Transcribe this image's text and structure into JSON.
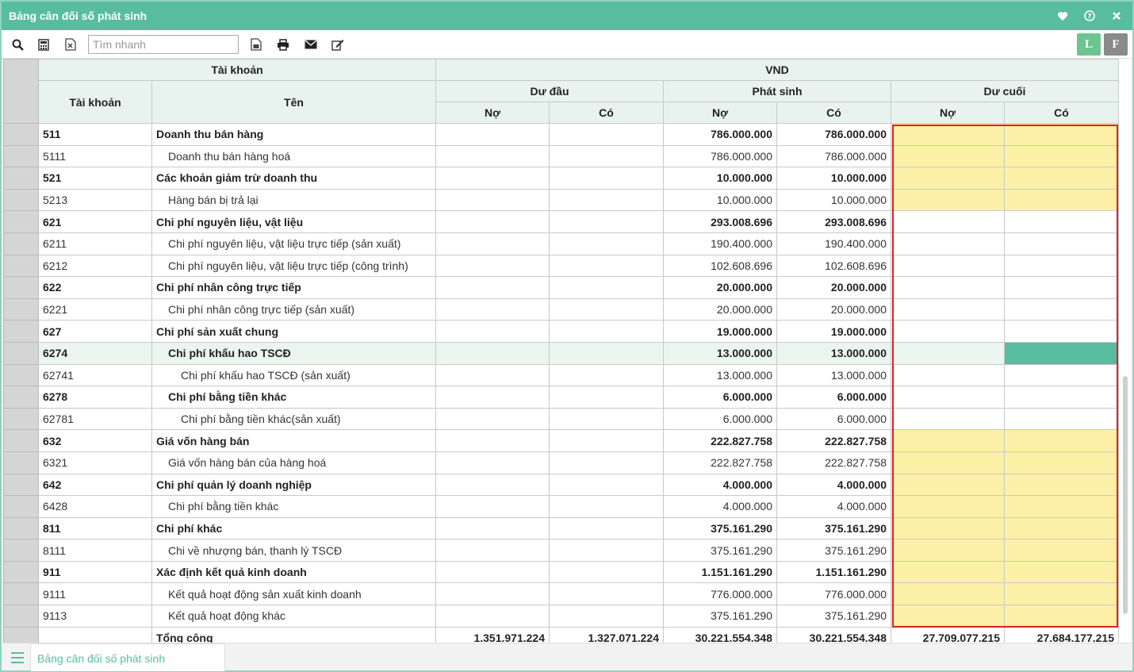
{
  "window": {
    "title": "Bảng cân đối số phát sinh"
  },
  "toolbar": {
    "search_placeholder": "Tìm nhanh",
    "btn_l": "L",
    "btn_f": "F"
  },
  "header": {
    "group_account": "Tài khoản",
    "group_currency": "VND",
    "col_account": "Tài khoản",
    "col_name": "Tên",
    "opening": "Dư đầu",
    "movement": "Phát sinh",
    "closing": "Dư cuối",
    "debit": "Nợ",
    "credit": "Có"
  },
  "rows": [
    {
      "code": "511",
      "name": "Doanh thu bán hàng",
      "ps_no": "786.000.000",
      "ps_co": "786.000.000"
    },
    {
      "code": "5111",
      "name": "Doanh thu bán hàng hoá",
      "ps_no": "786.000.000",
      "ps_co": "786.000.000"
    },
    {
      "code": "521",
      "name": "Các khoản giảm trừ doanh thu",
      "ps_no": "10.000.000",
      "ps_co": "10.000.000"
    },
    {
      "code": "5213",
      "name": "Hàng bán bị trả lại",
      "ps_no": "10.000.000",
      "ps_co": "10.000.000"
    },
    {
      "code": "621",
      "name": "Chi phí nguyên liệu, vật liệu",
      "ps_no": "293.008.696",
      "ps_co": "293.008.696"
    },
    {
      "code": "6211",
      "name": "Chi phí nguyên liệu, vật liệu trực tiếp (sản xuất)",
      "ps_no": "190.400.000",
      "ps_co": "190.400.000"
    },
    {
      "code": "6212",
      "name": "Chi phí nguyên liệu, vật liệu trực tiếp (công trình)",
      "ps_no": "102.608.696",
      "ps_co": "102.608.696"
    },
    {
      "code": "622",
      "name": "Chi phí nhân công trực tiếp",
      "ps_no": "20.000.000",
      "ps_co": "20.000.000"
    },
    {
      "code": "6221",
      "name": "Chi phí nhân công trực tiếp (sản xuất)",
      "ps_no": "20.000.000",
      "ps_co": "20.000.000"
    },
    {
      "code": "627",
      "name": "Chi phí sản xuất chung",
      "ps_no": "19.000.000",
      "ps_co": "19.000.000"
    },
    {
      "code": "6274",
      "name": "Chi phí khấu hao TSCĐ",
      "ps_no": "13.000.000",
      "ps_co": "13.000.000"
    },
    {
      "code": "62741",
      "name": "Chi phí khấu hao TSCĐ (sản xuất)",
      "ps_no": "13.000.000",
      "ps_co": "13.000.000"
    },
    {
      "code": "6278",
      "name": "Chi phí bằng tiền khác",
      "ps_no": "6.000.000",
      "ps_co": "6.000.000"
    },
    {
      "code": "62781",
      "name": "Chi phí bằng tiền khác(sản xuất)",
      "ps_no": "6.000.000",
      "ps_co": "6.000.000"
    },
    {
      "code": "632",
      "name": "Giá vốn hàng bán",
      "ps_no": "222.827.758",
      "ps_co": "222.827.758"
    },
    {
      "code": "6321",
      "name": "Giá vốn hàng bán của hàng hoá",
      "ps_no": "222.827.758",
      "ps_co": "222.827.758"
    },
    {
      "code": "642",
      "name": "Chi phí quản lý doanh nghiệp",
      "ps_no": "4.000.000",
      "ps_co": "4.000.000"
    },
    {
      "code": "6428",
      "name": "Chi phí bằng tiền khác",
      "ps_no": "4.000.000",
      "ps_co": "4.000.000"
    },
    {
      "code": "811",
      "name": "Chi phí khác",
      "ps_no": "375.161.290",
      "ps_co": "375.161.290"
    },
    {
      "code": "8111",
      "name": "Chi về nhượng bán, thanh lý TSCĐ",
      "ps_no": "375.161.290",
      "ps_co": "375.161.290"
    },
    {
      "code": "911",
      "name": "Xác định kết quả kinh doanh",
      "ps_no": "1.151.161.290",
      "ps_co": "1.151.161.290"
    },
    {
      "code": "9111",
      "name": "Kết quả hoạt động sản xuất kinh doanh",
      "ps_no": "776.000.000",
      "ps_co": "776.000.000"
    },
    {
      "code": "9113",
      "name": "Kết quả hoạt động khác",
      "ps_no": "375.161.290",
      "ps_co": "375.161.290"
    }
  ],
  "total": {
    "label": "Tổng cộng",
    "dd_no": "1.351.971.224",
    "dd_co": "1.327.071.224",
    "ps_no": "30.221.554.348",
    "ps_co": "30.221.554.348",
    "dc_no": "27.709.077.215",
    "dc_co": "27.684.177.215"
  },
  "footer": {
    "tab_label": "Bảng cân đối số phát sinh"
  },
  "colors": {
    "accent": "#57bd9e",
    "highlight_yellow": "#fbf0a6",
    "red_box": "#e02020"
  }
}
